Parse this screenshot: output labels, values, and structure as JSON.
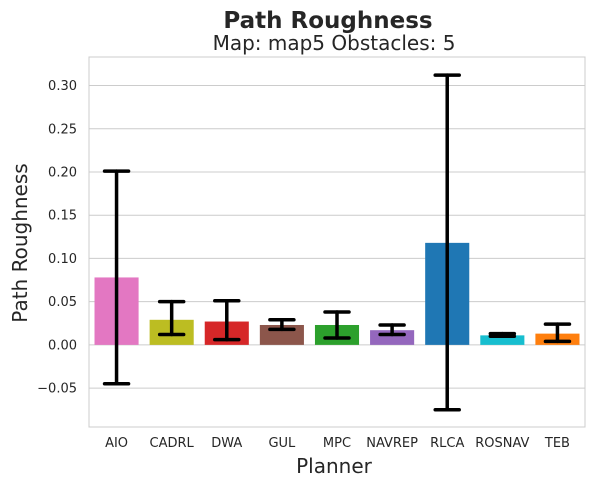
{
  "chart_data": {
    "type": "bar",
    "title": "Path Roughness",
    "subtitle": "Map: map5 Obstacles: 5",
    "xlabel": "Planner",
    "ylabel": "Path Roughness",
    "ylim": [
      -0.095,
      0.333
    ],
    "yticks": [
      -0.05,
      0.0,
      0.05,
      0.1,
      0.15,
      0.2,
      0.25,
      0.3
    ],
    "ytick_labels": [
      "−0.05",
      "0.00",
      "0.05",
      "0.10",
      "0.15",
      "0.20",
      "0.25",
      "0.30"
    ],
    "grid": true,
    "categories": [
      "AIO",
      "CADRL",
      "DWA",
      "GUL",
      "MPC",
      "NAVREP",
      "RLCA",
      "ROSNAV",
      "TEB"
    ],
    "values": [
      0.078,
      0.029,
      0.027,
      0.023,
      0.023,
      0.017,
      0.118,
      0.011,
      0.013
    ],
    "err_low": [
      -0.045,
      0.012,
      0.006,
      0.018,
      0.008,
      0.012,
      -0.075,
      0.01,
      0.004
    ],
    "err_high": [
      0.201,
      0.05,
      0.051,
      0.029,
      0.038,
      0.023,
      0.312,
      0.013,
      0.024
    ],
    "colors": [
      "#e377c2",
      "#bcbd22",
      "#d62728",
      "#8c564b",
      "#2ca02c",
      "#9467bd",
      "#1f77b4",
      "#17becf",
      "#ff7f0e"
    ]
  }
}
